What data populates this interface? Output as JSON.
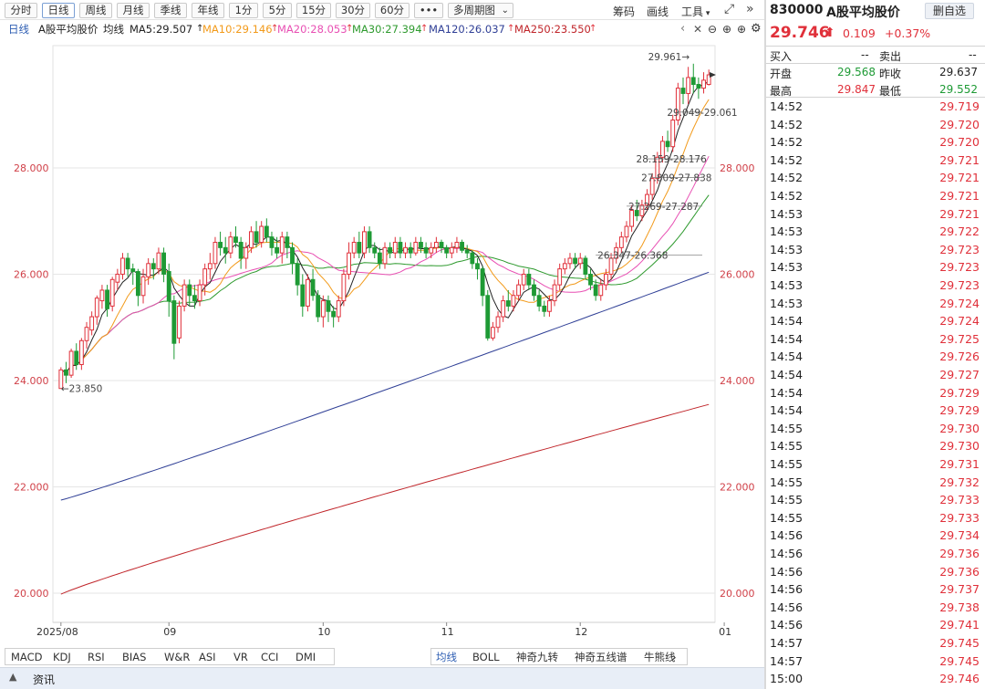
{
  "toolbar": {
    "periods": [
      "分时",
      "日线",
      "周线",
      "月线",
      "季线",
      "年线",
      "1分",
      "5分",
      "15分",
      "30分",
      "60分",
      "•••"
    ],
    "active_period": "日线",
    "multi": "多周期图",
    "links": [
      "筹码",
      "画线",
      "工具"
    ]
  },
  "infobar": {
    "period": "日线",
    "name": "A股平均股价",
    "type": "均线",
    "ma5": "MA5:29.507",
    "ma10": "MA10:29.146",
    "ma20": "MA20:28.053",
    "ma30": "MA30:27.394",
    "ma120": "MA120:26.037",
    "ma250": "MA250:23.550"
  },
  "colors": {
    "up": "#e0303a",
    "down": "#1e9a35",
    "ma5": "#222222",
    "ma10": "#f29a1a",
    "ma20": "#e84fb3",
    "ma30": "#2e9a2e",
    "ma120": "#2f3f96",
    "ma250": "#c0252a",
    "grid": "#e6e6e6"
  },
  "chart_data": {
    "type": "candlestick",
    "ylim": [
      19.45,
      30.3
    ],
    "y_ticks": [
      "28.000",
      "26.000",
      "24.000",
      "22.000",
      "20.000"
    ],
    "y_tick_values": [
      28,
      26,
      24,
      22,
      20
    ],
    "x_labels": [
      "2025/08",
      "09",
      "10",
      "11",
      "12",
      "01"
    ],
    "x_label_index": [
      0,
      21,
      51,
      75,
      101,
      129
    ],
    "candles": [
      [
        23.85,
        24.2,
        24.25,
        23.85
      ],
      [
        24.2,
        24.1,
        24.35,
        23.95
      ],
      [
        24.1,
        24.55,
        24.6,
        24.05
      ],
      [
        24.55,
        24.3,
        24.7,
        24.2
      ],
      [
        24.3,
        24.75,
        24.8,
        24.2
      ],
      [
        24.75,
        25.0,
        25.1,
        24.6
      ],
      [
        24.95,
        25.2,
        25.3,
        24.85
      ],
      [
        25.2,
        25.55,
        25.6,
        25.05
      ],
      [
        25.5,
        25.7,
        25.8,
        25.35
      ],
      [
        25.7,
        25.35,
        25.8,
        25.2
      ],
      [
        25.4,
        25.9,
        25.95,
        25.3
      ],
      [
        25.85,
        26.0,
        26.1,
        25.7
      ],
      [
        26.0,
        26.3,
        26.4,
        25.9
      ],
      [
        26.3,
        26.1,
        26.4,
        25.95
      ],
      [
        26.1,
        26.05,
        26.2,
        25.8
      ],
      [
        26.05,
        25.6,
        26.1,
        25.4
      ],
      [
        25.6,
        25.95,
        26.1,
        25.45
      ],
      [
        25.95,
        26.2,
        26.3,
        25.8
      ],
      [
        26.2,
        26.1,
        26.3,
        25.9
      ],
      [
        26.1,
        26.4,
        26.5,
        26.0
      ],
      [
        26.4,
        26.0,
        26.5,
        25.85
      ],
      [
        26.05,
        25.5,
        26.2,
        25.2
      ],
      [
        25.5,
        24.7,
        25.6,
        24.4
      ],
      [
        24.8,
        25.4,
        25.5,
        24.7
      ],
      [
        25.4,
        25.8,
        25.9,
        25.3
      ],
      [
        25.8,
        25.6,
        25.9,
        25.4
      ],
      [
        25.6,
        25.5,
        25.8,
        25.35
      ],
      [
        25.5,
        25.8,
        25.9,
        25.4
      ],
      [
        25.8,
        26.1,
        26.2,
        25.6
      ],
      [
        26.1,
        26.2,
        26.4,
        25.9
      ],
      [
        26.2,
        26.6,
        26.7,
        26.1
      ],
      [
        26.6,
        26.5,
        26.8,
        26.35
      ],
      [
        26.5,
        26.4,
        26.7,
        26.2
      ],
      [
        26.4,
        26.7,
        26.8,
        26.3
      ],
      [
        26.7,
        26.6,
        26.9,
        26.5
      ],
      [
        26.6,
        26.3,
        26.7,
        26.1
      ],
      [
        26.3,
        26.5,
        26.6,
        26.1
      ],
      [
        26.5,
        26.8,
        26.9,
        26.4
      ],
      [
        26.8,
        26.6,
        27.0,
        26.5
      ],
      [
        26.6,
        26.9,
        27.0,
        26.5
      ],
      [
        26.9,
        26.7,
        27.05,
        26.6
      ],
      [
        26.7,
        26.5,
        26.8,
        26.35
      ],
      [
        26.5,
        26.4,
        26.7,
        26.3
      ],
      [
        26.4,
        26.7,
        26.8,
        26.2
      ],
      [
        26.7,
        26.5,
        26.8,
        26.3
      ],
      [
        26.5,
        26.2,
        26.6,
        26.0
      ],
      [
        26.2,
        25.8,
        26.3,
        25.6
      ],
      [
        25.8,
        25.4,
        26.0,
        25.2
      ],
      [
        25.4,
        25.9,
        26.0,
        25.3
      ],
      [
        25.9,
        25.6,
        26.1,
        25.5
      ],
      [
        25.6,
        25.2,
        25.7,
        25.1
      ],
      [
        25.2,
        25.5,
        25.6,
        25.0
      ],
      [
        25.5,
        25.3,
        25.6,
        25.1
      ],
      [
        25.3,
        25.2,
        25.4,
        25.0
      ],
      [
        25.2,
        25.5,
        25.6,
        25.1
      ],
      [
        25.5,
        26.0,
        26.1,
        25.4
      ],
      [
        26.0,
        26.4,
        26.6,
        25.9
      ],
      [
        26.4,
        26.6,
        26.7,
        26.3
      ],
      [
        26.6,
        26.4,
        26.8,
        26.3
      ],
      [
        26.4,
        26.8,
        26.9,
        26.3
      ],
      [
        26.8,
        26.5,
        26.9,
        26.4
      ],
      [
        26.5,
        26.4,
        26.6,
        26.3
      ],
      [
        26.4,
        26.2,
        26.5,
        26.1
      ],
      [
        26.2,
        26.5,
        26.6,
        26.1
      ],
      [
        26.5,
        26.4,
        26.6,
        26.3
      ],
      [
        26.4,
        26.6,
        26.7,
        26.3
      ],
      [
        26.6,
        26.4,
        26.7,
        26.3
      ],
      [
        26.4,
        26.5,
        26.6,
        26.3
      ],
      [
        26.5,
        26.4,
        26.6,
        26.3
      ],
      [
        26.4,
        26.6,
        26.7,
        26.35
      ],
      [
        26.6,
        26.5,
        26.7,
        26.4
      ],
      [
        26.5,
        26.4,
        26.6,
        26.3
      ],
      [
        26.4,
        26.5,
        26.6,
        26.3
      ],
      [
        26.5,
        26.6,
        26.7,
        26.4
      ],
      [
        26.6,
        26.5,
        26.65,
        26.4
      ],
      [
        26.5,
        26.4,
        26.55,
        26.3
      ],
      [
        26.4,
        26.5,
        26.6,
        26.3
      ],
      [
        26.5,
        26.6,
        26.7,
        26.4
      ],
      [
        26.6,
        26.45,
        26.65,
        26.4
      ],
      [
        26.45,
        26.4,
        26.55,
        26.3
      ],
      [
        26.4,
        26.2,
        26.45,
        26.1
      ],
      [
        26.2,
        26.1,
        26.3,
        25.9
      ],
      [
        26.1,
        25.6,
        26.15,
        25.4
      ],
      [
        25.6,
        24.8,
        25.7,
        24.75
      ],
      [
        24.8,
        25.0,
        25.1,
        24.75
      ],
      [
        25.0,
        25.2,
        25.3,
        24.9
      ],
      [
        25.2,
        25.5,
        25.6,
        25.1
      ],
      [
        25.5,
        25.4,
        25.7,
        25.3
      ],
      [
        25.4,
        25.6,
        25.7,
        25.3
      ],
      [
        25.6,
        25.8,
        25.9,
        25.5
      ],
      [
        25.8,
        26.0,
        26.1,
        25.7
      ],
      [
        26.0,
        25.8,
        26.1,
        25.7
      ],
      [
        25.8,
        25.6,
        25.9,
        25.5
      ],
      [
        25.6,
        25.4,
        25.7,
        25.3
      ],
      [
        25.4,
        25.3,
        25.5,
        25.2
      ],
      [
        25.3,
        25.5,
        25.6,
        25.2
      ],
      [
        25.5,
        25.8,
        25.9,
        25.4
      ],
      [
        25.8,
        26.1,
        26.2,
        25.7
      ],
      [
        26.1,
        26.2,
        26.3,
        26.0
      ],
      [
        26.2,
        26.3,
        26.4,
        26.1
      ],
      [
        26.3,
        26.2,
        26.4,
        26.1
      ],
      [
        26.2,
        26.3,
        26.4,
        26.1
      ],
      [
        26.3,
        26.0,
        26.35,
        25.9
      ],
      [
        26.0,
        25.8,
        26.1,
        25.7
      ],
      [
        25.8,
        25.6,
        25.9,
        25.5
      ],
      [
        25.6,
        25.8,
        25.9,
        25.5
      ],
      [
        25.8,
        26.0,
        26.1,
        25.7
      ],
      [
        26.0,
        26.3,
        26.4,
        25.9
      ],
      [
        26.3,
        26.5,
        26.6,
        26.2
      ],
      [
        26.5,
        26.7,
        26.8,
        26.4
      ],
      [
        26.7,
        26.9,
        27.0,
        26.6
      ],
      [
        26.9,
        27.2,
        27.3,
        26.8
      ],
      [
        27.2,
        27.1,
        27.4,
        27.0
      ],
      [
        27.1,
        27.3,
        27.4,
        27.0
      ],
      [
        27.3,
        27.5,
        27.6,
        27.2
      ],
      [
        27.5,
        27.8,
        27.9,
        27.4
      ],
      [
        27.8,
        28.2,
        28.3,
        27.7
      ],
      [
        28.2,
        28.5,
        28.6,
        28.1
      ],
      [
        28.5,
        28.4,
        28.7,
        28.3
      ],
      [
        28.4,
        28.9,
        29.0,
        28.3
      ],
      [
        28.9,
        29.5,
        29.6,
        28.8
      ],
      [
        29.5,
        29.4,
        29.7,
        29.2
      ],
      [
        29.4,
        29.7,
        29.9,
        29.2
      ],
      [
        29.7,
        29.57,
        29.96,
        29.4
      ],
      [
        29.57,
        29.5,
        29.7,
        29.3
      ],
      [
        29.5,
        29.65,
        29.8,
        29.4
      ],
      [
        29.57,
        29.75,
        29.85,
        29.55
      ]
    ],
    "annotations": [
      {
        "label": "29.961→",
        "x": 122,
        "y": 29.96,
        "type": "max"
      },
      {
        "label": "←23.850",
        "x": 0,
        "y": 23.85,
        "type": "min"
      },
      {
        "label": "29.049-29.061",
        "x": 120,
        "y": 29.05,
        "type": "gap"
      },
      {
        "label": "28.159-28.176",
        "x": 114,
        "y": 28.17,
        "type": "gap"
      },
      {
        "label": "27.809-27.838",
        "x": 115,
        "y": 27.82,
        "type": "gap"
      },
      {
        "label": "27.269-27.287",
        "x": 110,
        "y": 27.28,
        "type": "gap"
      },
      {
        "label": "26.347-26.368",
        "x": 104,
        "y": 26.36,
        "type": "gap"
      }
    ]
  },
  "bottom": {
    "left_tabs": [
      "MACD",
      "KDJ",
      "RSI",
      "BIAS",
      "W&R",
      "ASI",
      "VR",
      "CCI",
      "DMI"
    ],
    "right_tabs": [
      "均线",
      "BOLL",
      "神奇九转",
      "神奇五线谱",
      "牛熊线"
    ],
    "news": "资讯"
  },
  "quote": {
    "code": "830000",
    "name": "A股平均股价",
    "add_button": "删自选",
    "price": "29.746",
    "change": "0.109",
    "pct": "+0.37%",
    "buy_label": "买入",
    "buy_value": "--",
    "sell_label": "卖出",
    "sell_value": "--",
    "open_label": "开盘",
    "open": "29.568",
    "prev_label": "昨收",
    "prev": "29.637",
    "high_label": "最高",
    "high": "29.847",
    "low_label": "最低",
    "low": "29.552"
  },
  "ticks": [
    {
      "time": "14:52",
      "price": "29.719"
    },
    {
      "time": "14:52",
      "price": "29.720"
    },
    {
      "time": "14:52",
      "price": "29.720"
    },
    {
      "time": "14:52",
      "price": "29.721"
    },
    {
      "time": "14:52",
      "price": "29.721"
    },
    {
      "time": "14:52",
      "price": "29.721"
    },
    {
      "time": "14:53",
      "price": "29.721"
    },
    {
      "time": "14:53",
      "price": "29.722"
    },
    {
      "time": "14:53",
      "price": "29.723"
    },
    {
      "time": "14:53",
      "price": "29.723"
    },
    {
      "time": "14:53",
      "price": "29.723"
    },
    {
      "time": "14:53",
      "price": "29.724"
    },
    {
      "time": "14:54",
      "price": "29.724"
    },
    {
      "time": "14:54",
      "price": "29.725"
    },
    {
      "time": "14:54",
      "price": "29.726"
    },
    {
      "time": "14:54",
      "price": "29.727"
    },
    {
      "time": "14:54",
      "price": "29.729"
    },
    {
      "time": "14:54",
      "price": "29.729"
    },
    {
      "time": "14:55",
      "price": "29.730"
    },
    {
      "time": "14:55",
      "price": "29.730"
    },
    {
      "time": "14:55",
      "price": "29.731"
    },
    {
      "time": "14:55",
      "price": "29.732"
    },
    {
      "time": "14:55",
      "price": "29.733"
    },
    {
      "time": "14:55",
      "price": "29.733"
    },
    {
      "time": "14:56",
      "price": "29.734"
    },
    {
      "time": "14:56",
      "price": "29.736"
    },
    {
      "time": "14:56",
      "price": "29.736"
    },
    {
      "time": "14:56",
      "price": "29.737"
    },
    {
      "time": "14:56",
      "price": "29.738"
    },
    {
      "time": "14:56",
      "price": "29.741"
    },
    {
      "time": "14:57",
      "price": "29.745"
    },
    {
      "time": "14:57",
      "price": "29.745"
    },
    {
      "time": "15:00",
      "price": "29.746"
    }
  ]
}
